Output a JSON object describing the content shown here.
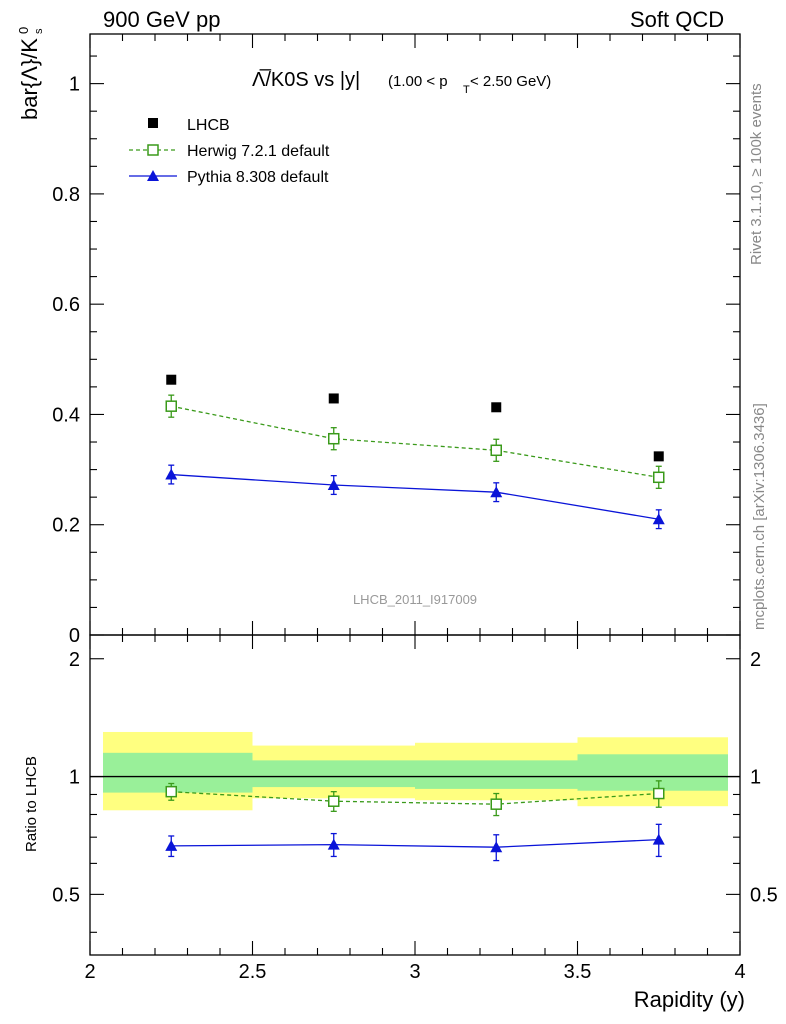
{
  "header": {
    "left": "900 GeV pp",
    "right": "Soft QCD"
  },
  "side": {
    "rivet": "Rivet 3.1.10, ≥ 100k events",
    "mcplots": "mcplots.cern.ch [arXiv:1306.3436]"
  },
  "chart_data": [
    {
      "type": "scatter",
      "title_main": "Λ̅/K0S vs |y|",
      "title_sub_a": "(1.00 < p",
      "title_sub_sub": "T",
      "title_sub_b": " < 2.50 GeV)",
      "ylabel": "bar{Λ}/K",
      "ylabel_sub": "s",
      "ylabel_sup": "0",
      "watermark": "LHCB_2011_I917009",
      "xlim": [
        2,
        4
      ],
      "ylim": [
        0,
        1.09
      ],
      "yticks": [
        0,
        0.2,
        0.4,
        0.6,
        0.8,
        1
      ],
      "yticklabels": [
        "0",
        "0.2",
        "0.4",
        "0.6",
        "0.8",
        "1"
      ],
      "legend_position": "top-left",
      "series": [
        {
          "name": "LHCB",
          "color": "#000000",
          "marker": "filled-square",
          "x": [
            2.25,
            2.75,
            3.25,
            3.75
          ],
          "y": [
            0.463,
            0.429,
            0.413,
            0.324
          ],
          "yerr": [
            0,
            0,
            0,
            0
          ]
        },
        {
          "name": "Herwig 7.2.1 default",
          "color": "#3a9a1a",
          "marker": "open-square",
          "line": "dashed",
          "x": [
            2.25,
            2.75,
            3.25,
            3.75
          ],
          "y": [
            0.415,
            0.356,
            0.335,
            0.286
          ],
          "yerr": [
            0.02,
            0.02,
            0.02,
            0.02
          ]
        },
        {
          "name": "Pythia 8.308 default",
          "color": "#0a14d8",
          "marker": "filled-triangle",
          "line": "solid",
          "x": [
            2.25,
            2.75,
            3.25,
            3.75
          ],
          "y": [
            0.291,
            0.272,
            0.259,
            0.21
          ],
          "yerr": [
            0.017,
            0.017,
            0.017,
            0.017
          ]
        }
      ]
    },
    {
      "type": "scatter",
      "ylabel": "Ratio to LHCB",
      "xlabel": "Rapidity (y)",
      "xlim": [
        2,
        4
      ],
      "ylim": [
        0.35,
        2.3
      ],
      "xticks": [
        2,
        2.5,
        3,
        3.5,
        4
      ],
      "xticklabels": [
        "2",
        "2.5",
        "3",
        "3.5",
        "4"
      ],
      "yticks": [
        0.5,
        1,
        2
      ],
      "yticklabels": [
        "0.5",
        "1",
        "2"
      ],
      "bands": [
        {
          "x0": 2.0,
          "x1": 2.5,
          "yellow": [
            0.82,
            1.3
          ],
          "green": [
            0.91,
            1.15
          ]
        },
        {
          "x0": 2.5,
          "x1": 3.0,
          "yellow": [
            0.88,
            1.2
          ],
          "green": [
            0.94,
            1.1
          ]
        },
        {
          "x0": 3.0,
          "x1": 3.5,
          "yellow": [
            0.87,
            1.22
          ],
          "green": [
            0.93,
            1.1
          ]
        },
        {
          "x0": 3.5,
          "x1": 4.0,
          "yellow": [
            0.84,
            1.26
          ],
          "green": [
            0.92,
            1.14
          ]
        }
      ],
      "series": [
        {
          "name": "Herwig 7.2.1 default",
          "color": "#3a9a1a",
          "marker": "open-square",
          "line": "dashed",
          "x": [
            2.25,
            2.75,
            3.25,
            3.75
          ],
          "y": [
            0.915,
            0.865,
            0.85,
            0.905
          ],
          "yerr": [
            0.045,
            0.05,
            0.055,
            0.07
          ]
        },
        {
          "name": "Pythia 8.308 default",
          "color": "#0a14d8",
          "marker": "filled-triangle",
          "line": "solid",
          "x": [
            2.25,
            2.75,
            3.25,
            3.75
          ],
          "y": [
            0.665,
            0.67,
            0.66,
            0.69
          ],
          "yerr": [
            0.04,
            0.045,
            0.05,
            0.065
          ]
        }
      ]
    }
  ]
}
